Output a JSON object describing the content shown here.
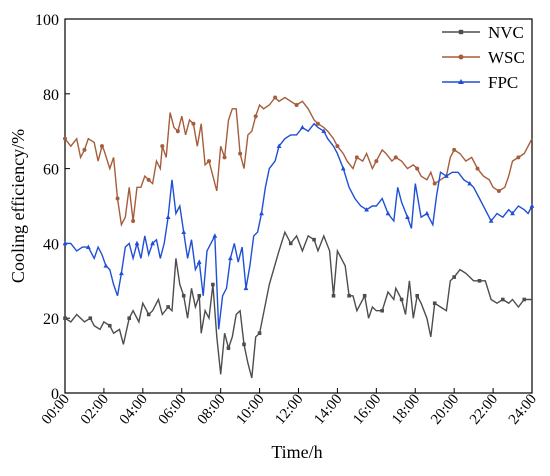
{
  "chart_data": {
    "type": "line",
    "title": "",
    "xlabel": "Time/h",
    "ylabel": "Cooling efficiency/%",
    "xlim": [
      0,
      24
    ],
    "ylim": [
      0,
      100
    ],
    "x_ticks": [
      "00:00",
      "02:00",
      "04:00",
      "06:00",
      "08:00",
      "10:00",
      "12:00",
      "14:00",
      "16:00",
      "18:00",
      "20:00",
      "22:00",
      "24:00"
    ],
    "y_ticks": [
      "0",
      "20",
      "40",
      "60",
      "80",
      "100"
    ],
    "grid": false,
    "legend_position": "top-right",
    "series": [
      {
        "name": "NVC",
        "color": "#4d4d4d",
        "points": [
          [
            0,
            20
          ],
          [
            0.3,
            19
          ],
          [
            0.6,
            21
          ],
          [
            1,
            19
          ],
          [
            1.3,
            20
          ],
          [
            1.5,
            18
          ],
          [
            1.8,
            17
          ],
          [
            2,
            19
          ],
          [
            2.3,
            18
          ],
          [
            2.5,
            16
          ],
          [
            2.8,
            17
          ],
          [
            3,
            13
          ],
          [
            3.3,
            20
          ],
          [
            3.5,
            22
          ],
          [
            3.8,
            19
          ],
          [
            4,
            24
          ],
          [
            4.3,
            21
          ],
          [
            4.5,
            22
          ],
          [
            4.8,
            25
          ],
          [
            5,
            21
          ],
          [
            5.3,
            23
          ],
          [
            5.5,
            22
          ],
          [
            5.7,
            36
          ],
          [
            5.9,
            29
          ],
          [
            6.1,
            26
          ],
          [
            6.3,
            20
          ],
          [
            6.5,
            28
          ],
          [
            6.7,
            23
          ],
          [
            6.9,
            26
          ],
          [
            7,
            16
          ],
          [
            7.2,
            22
          ],
          [
            7.4,
            20
          ],
          [
            7.6,
            29
          ],
          [
            7.8,
            15
          ],
          [
            8,
            5
          ],
          [
            8.2,
            16
          ],
          [
            8.4,
            12
          ],
          [
            8.6,
            15
          ],
          [
            8.8,
            21
          ],
          [
            9,
            22
          ],
          [
            9.2,
            13
          ],
          [
            9.4,
            8
          ],
          [
            9.6,
            4
          ],
          [
            9.8,
            15
          ],
          [
            10,
            16
          ],
          [
            10.5,
            29
          ],
          [
            11,
            38
          ],
          [
            11.3,
            43
          ],
          [
            11.6,
            40
          ],
          [
            11.9,
            42
          ],
          [
            12.2,
            38
          ],
          [
            12.5,
            42
          ],
          [
            12.8,
            41
          ],
          [
            13,
            38
          ],
          [
            13.3,
            42
          ],
          [
            13.6,
            38
          ],
          [
            13.8,
            26
          ],
          [
            14,
            38
          ],
          [
            14.2,
            36
          ],
          [
            14.4,
            34
          ],
          [
            14.6,
            26
          ],
          [
            14.8,
            26
          ],
          [
            15,
            22
          ],
          [
            15.2,
            24
          ],
          [
            15.4,
            26
          ],
          [
            15.6,
            20
          ],
          [
            15.8,
            23
          ],
          [
            16,
            22
          ],
          [
            16.3,
            22
          ],
          [
            16.6,
            27
          ],
          [
            16.9,
            25
          ],
          [
            17,
            28
          ],
          [
            17.3,
            25
          ],
          [
            17.5,
            21
          ],
          [
            17.7,
            30
          ],
          [
            17.9,
            20
          ],
          [
            18.1,
            26
          ],
          [
            18.3,
            24
          ],
          [
            18.6,
            20
          ],
          [
            18.8,
            15
          ],
          [
            19,
            24
          ],
          [
            19.3,
            23
          ],
          [
            19.6,
            22
          ],
          [
            19.8,
            30
          ],
          [
            20,
            31
          ],
          [
            20.3,
            33
          ],
          [
            20.6,
            32
          ],
          [
            21,
            30
          ],
          [
            21.3,
            30
          ],
          [
            21.6,
            30
          ],
          [
            21.9,
            25
          ],
          [
            22.2,
            24
          ],
          [
            22.5,
            25
          ],
          [
            22.8,
            24
          ],
          [
            23,
            25
          ],
          [
            23.3,
            23
          ],
          [
            23.6,
            25
          ],
          [
            24,
            25
          ]
        ]
      },
      {
        "name": "WSC",
        "color": "#a65d3c",
        "points": [
          [
            0,
            68
          ],
          [
            0.3,
            66
          ],
          [
            0.6,
            68
          ],
          [
            0.8,
            63
          ],
          [
            1,
            65
          ],
          [
            1.2,
            68
          ],
          [
            1.5,
            67
          ],
          [
            1.7,
            62
          ],
          [
            1.9,
            66
          ],
          [
            2,
            65
          ],
          [
            2.3,
            60
          ],
          [
            2.5,
            63
          ],
          [
            2.7,
            52
          ],
          [
            2.9,
            45
          ],
          [
            3.1,
            47
          ],
          [
            3.3,
            55
          ],
          [
            3.5,
            46
          ],
          [
            3.7,
            55
          ],
          [
            3.9,
            55
          ],
          [
            4.1,
            58
          ],
          [
            4.3,
            57
          ],
          [
            4.5,
            56
          ],
          [
            4.7,
            62
          ],
          [
            4.9,
            60
          ],
          [
            5,
            66
          ],
          [
            5.2,
            63
          ],
          [
            5.4,
            75
          ],
          [
            5.6,
            71
          ],
          [
            5.8,
            70
          ],
          [
            6,
            74
          ],
          [
            6.2,
            69
          ],
          [
            6.4,
            73
          ],
          [
            6.6,
            72
          ],
          [
            6.8,
            66
          ],
          [
            7,
            72
          ],
          [
            7.2,
            61
          ],
          [
            7.4,
            62
          ],
          [
            7.6,
            58
          ],
          [
            7.8,
            54
          ],
          [
            8,
            66
          ],
          [
            8.2,
            63
          ],
          [
            8.4,
            73
          ],
          [
            8.6,
            76
          ],
          [
            8.8,
            76
          ],
          [
            9,
            64
          ],
          [
            9.2,
            60
          ],
          [
            9.4,
            69
          ],
          [
            9.6,
            70
          ],
          [
            9.8,
            74
          ],
          [
            10,
            77
          ],
          [
            10.2,
            76
          ],
          [
            10.5,
            77
          ],
          [
            10.8,
            79
          ],
          [
            11,
            78
          ],
          [
            11.3,
            79
          ],
          [
            11.6,
            78
          ],
          [
            11.9,
            77
          ],
          [
            12.2,
            78
          ],
          [
            12.5,
            76
          ],
          [
            12.8,
            73
          ],
          [
            13,
            72
          ],
          [
            13.3,
            71
          ],
          [
            13.5,
            70
          ],
          [
            13.8,
            68
          ],
          [
            14,
            66
          ],
          [
            14.3,
            64
          ],
          [
            14.5,
            62
          ],
          [
            14.8,
            60
          ],
          [
            15,
            63
          ],
          [
            15.3,
            62
          ],
          [
            15.5,
            64
          ],
          [
            15.8,
            60
          ],
          [
            16,
            62
          ],
          [
            16.3,
            65
          ],
          [
            16.5,
            64
          ],
          [
            16.8,
            62
          ],
          [
            17,
            63
          ],
          [
            17.3,
            62
          ],
          [
            17.6,
            60
          ],
          [
            17.9,
            61
          ],
          [
            18.1,
            60
          ],
          [
            18.3,
            58
          ],
          [
            18.6,
            57
          ],
          [
            18.8,
            59
          ],
          [
            19,
            56
          ],
          [
            19.3,
            57
          ],
          [
            19.6,
            58
          ],
          [
            19.8,
            63
          ],
          [
            20,
            65
          ],
          [
            20.3,
            64
          ],
          [
            20.6,
            62
          ],
          [
            20.9,
            63
          ],
          [
            21.2,
            60
          ],
          [
            21.5,
            58
          ],
          [
            21.8,
            57
          ],
          [
            22,
            55
          ],
          [
            22.3,
            54
          ],
          [
            22.6,
            55
          ],
          [
            22.8,
            58
          ],
          [
            23,
            62
          ],
          [
            23.3,
            63
          ],
          [
            23.6,
            64
          ],
          [
            23.8,
            66
          ],
          [
            24,
            68
          ]
        ]
      },
      {
        "name": "FPC",
        "color": "#1f4fd6",
        "points": [
          [
            0,
            40
          ],
          [
            0.3,
            40
          ],
          [
            0.6,
            38
          ],
          [
            0.9,
            39
          ],
          [
            1.2,
            39
          ],
          [
            1.5,
            36
          ],
          [
            1.7,
            39
          ],
          [
            1.9,
            37
          ],
          [
            2.1,
            34
          ],
          [
            2.3,
            33
          ],
          [
            2.5,
            29
          ],
          [
            2.7,
            26
          ],
          [
            2.9,
            32
          ],
          [
            3.1,
            39
          ],
          [
            3.3,
            40
          ],
          [
            3.5,
            36
          ],
          [
            3.7,
            40
          ],
          [
            3.9,
            36
          ],
          [
            4.1,
            42
          ],
          [
            4.3,
            37
          ],
          [
            4.5,
            40
          ],
          [
            4.7,
            41
          ],
          [
            4.9,
            36
          ],
          [
            5.1,
            40
          ],
          [
            5.3,
            47
          ],
          [
            5.5,
            57
          ],
          [
            5.7,
            48
          ],
          [
            5.9,
            50
          ],
          [
            6.1,
            43
          ],
          [
            6.3,
            36
          ],
          [
            6.5,
            41
          ],
          [
            6.7,
            33
          ],
          [
            6.9,
            35
          ],
          [
            7.1,
            26
          ],
          [
            7.3,
            38
          ],
          [
            7.5,
            40
          ],
          [
            7.7,
            42
          ],
          [
            7.9,
            17
          ],
          [
            8.1,
            26
          ],
          [
            8.3,
            28
          ],
          [
            8.5,
            36
          ],
          [
            8.7,
            40
          ],
          [
            8.9,
            35
          ],
          [
            9.1,
            39
          ],
          [
            9.3,
            28
          ],
          [
            9.5,
            34
          ],
          [
            9.7,
            42
          ],
          [
            9.9,
            43
          ],
          [
            10.1,
            48
          ],
          [
            10.3,
            55
          ],
          [
            10.5,
            60
          ],
          [
            10.8,
            62
          ],
          [
            11,
            66
          ],
          [
            11.3,
            68
          ],
          [
            11.6,
            69
          ],
          [
            11.9,
            69
          ],
          [
            12.2,
            71
          ],
          [
            12.5,
            70
          ],
          [
            12.8,
            72
          ],
          [
            13,
            71
          ],
          [
            13.3,
            70
          ],
          [
            13.5,
            68
          ],
          [
            13.8,
            66
          ],
          [
            14,
            64
          ],
          [
            14.3,
            60
          ],
          [
            14.6,
            55
          ],
          [
            14.9,
            52
          ],
          [
            15.2,
            50
          ],
          [
            15.5,
            49
          ],
          [
            15.8,
            50
          ],
          [
            16,
            50
          ],
          [
            16.3,
            52
          ],
          [
            16.6,
            48
          ],
          [
            16.9,
            46
          ],
          [
            17.1,
            55
          ],
          [
            17.3,
            51
          ],
          [
            17.6,
            47
          ],
          [
            17.8,
            44
          ],
          [
            18,
            56
          ],
          [
            18.3,
            47
          ],
          [
            18.6,
            48
          ],
          [
            18.9,
            45
          ],
          [
            19.1,
            53
          ],
          [
            19.3,
            59
          ],
          [
            19.6,
            58
          ],
          [
            19.9,
            59
          ],
          [
            20.2,
            59
          ],
          [
            20.5,
            57
          ],
          [
            20.8,
            56
          ],
          [
            21,
            55
          ],
          [
            21.3,
            52
          ],
          [
            21.6,
            49
          ],
          [
            21.9,
            46
          ],
          [
            22.2,
            48
          ],
          [
            22.5,
            47
          ],
          [
            22.8,
            49
          ],
          [
            23,
            48
          ],
          [
            23.3,
            50
          ],
          [
            23.6,
            49
          ],
          [
            23.8,
            48
          ],
          [
            24,
            50
          ]
        ]
      }
    ]
  }
}
